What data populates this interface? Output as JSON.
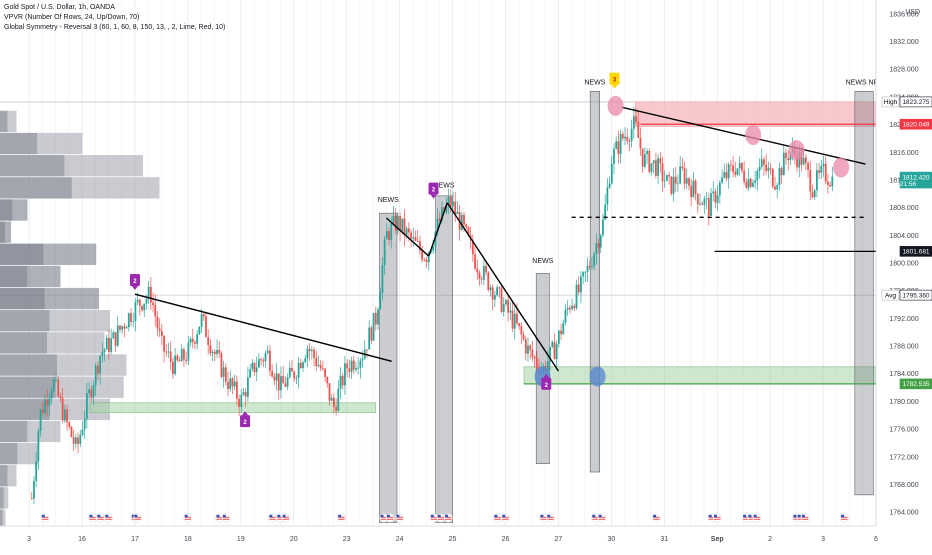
{
  "legend": {
    "title": "Gold Spot / U.S. Dollar, 1h, OANDA",
    "vpvr": "VPVR (Number Of Rows, 24, Up/Down, 70)",
    "symmetry": "Global Symmetry - Reversal 3 (60, 1, 60, 8, 150, 13, , 2, Lime, Red, 10)"
  },
  "axis": {
    "currency": "USD"
  },
  "colors": {
    "up": "#26a69a",
    "down": "#ef5350",
    "red_zone": "#f5b5bb",
    "red_line": "#f23645",
    "green_zone": "#a5d6a7",
    "green_line": "#43a047",
    "news_band": "#787b86",
    "badge": "#9c27b0",
    "badge_top": "#ffd600",
    "pink_marker": "#e88aa8",
    "blue_marker": "#5b8bd4",
    "price_tag": "#26a69a",
    "trend": "#000000"
  },
  "chart_data": {
    "type": "candlestick",
    "title": "Gold Spot / U.S. Dollar, 1h, OANDA",
    "y_unit": "USD",
    "ylim": [
      1762,
      1838
    ],
    "y_ticks": [
      1764,
      1768,
      1772,
      1776,
      1780,
      1784,
      1788,
      1792,
      1796,
      1800,
      1804,
      1808,
      1812,
      1816,
      1820,
      1824,
      1828,
      1832,
      1836
    ],
    "x_ticks": [
      {
        "label": "3",
        "x": 0
      },
      {
        "label": "16",
        "x": 1
      },
      {
        "label": "17",
        "x": 2
      },
      {
        "label": "18",
        "x": 3
      },
      {
        "label": "19",
        "x": 4
      },
      {
        "label": "20",
        "x": 5
      },
      {
        "label": "23",
        "x": 6
      },
      {
        "label": "24",
        "x": 7
      },
      {
        "label": "25",
        "x": 8
      },
      {
        "label": "26",
        "x": 9
      },
      {
        "label": "27",
        "x": 10
      },
      {
        "label": "30",
        "x": 11
      },
      {
        "label": "31",
        "x": 12
      },
      {
        "label": "Sep",
        "x": 13,
        "bold": true
      },
      {
        "label": "2",
        "x": 14
      },
      {
        "label": "3",
        "x": 15
      },
      {
        "label": "6",
        "x": 16
      }
    ],
    "xlim": [
      -0.55,
      16.0
    ],
    "price_path": [
      [
        0.05,
        1766
      ],
      [
        0.2,
        1778
      ],
      [
        0.45,
        1783
      ],
      [
        0.7,
        1777
      ],
      [
        0.9,
        1773
      ],
      [
        1.1,
        1780
      ],
      [
        1.35,
        1787
      ],
      [
        1.6,
        1789
      ],
      [
        1.85,
        1792
      ],
      [
        2.05,
        1794
      ],
      [
        2.3,
        1795.5
      ],
      [
        2.5,
        1788
      ],
      [
        2.75,
        1785
      ],
      [
        3.0,
        1787
      ],
      [
        3.25,
        1792
      ],
      [
        3.5,
        1787
      ],
      [
        3.75,
        1783
      ],
      [
        4.0,
        1780
      ],
      [
        4.25,
        1785
      ],
      [
        4.5,
        1787
      ],
      [
        4.75,
        1782
      ],
      [
        5.0,
        1784
      ],
      [
        5.25,
        1788
      ],
      [
        5.5,
        1785
      ],
      [
        5.75,
        1779
      ],
      [
        6.0,
        1785
      ],
      [
        6.3,
        1787
      ],
      [
        6.55,
        1792
      ],
      [
        6.75,
        1804
      ],
      [
        6.95,
        1806
      ],
      [
        7.25,
        1803
      ],
      [
        7.5,
        1801
      ],
      [
        7.75,
        1806
      ],
      [
        7.95,
        1809
      ],
      [
        8.2,
        1805
      ],
      [
        8.45,
        1800
      ],
      [
        8.7,
        1797
      ],
      [
        8.95,
        1794
      ],
      [
        9.2,
        1791
      ],
      [
        9.45,
        1787
      ],
      [
        9.7,
        1784.5
      ],
      [
        9.95,
        1788
      ],
      [
        10.2,
        1794
      ],
      [
        10.4,
        1796
      ],
      [
        10.6,
        1800
      ],
      [
        10.85,
        1806
      ],
      [
        11.0,
        1815
      ],
      [
        11.2,
        1818
      ],
      [
        11.45,
        1820
      ],
      [
        11.6,
        1815
      ],
      [
        11.85,
        1814
      ],
      [
        12.1,
        1811
      ],
      [
        12.35,
        1813
      ],
      [
        12.6,
        1810
      ],
      [
        12.85,
        1808
      ],
      [
        13.1,
        1812
      ],
      [
        13.35,
        1814
      ],
      [
        13.6,
        1812
      ],
      [
        13.85,
        1814
      ],
      [
        14.1,
        1812
      ],
      [
        14.35,
        1816
      ],
      [
        14.6,
        1815
      ],
      [
        14.8,
        1811
      ],
      [
        15.0,
        1813
      ],
      [
        15.2,
        1812
      ]
    ],
    "volume_profile": [
      {
        "price": 1838.0,
        "len": 0
      },
      {
        "price": 1834.8,
        "len": 0
      },
      {
        "price": 1831.6,
        "len": 0
      },
      {
        "price": 1828.4,
        "len": 0
      },
      {
        "price": 1825.2,
        "len": 0
      },
      {
        "price": 1822.0,
        "len": 6
      },
      {
        "price": 1818.8,
        "len": 30
      },
      {
        "price": 1815.6,
        "len": 52
      },
      {
        "price": 1812.4,
        "len": 58
      },
      {
        "price": 1809.2,
        "len": 10
      },
      {
        "price": 1806.0,
        "len": 4
      },
      {
        "price": 1802.8,
        "len": 35
      },
      {
        "price": 1799.6,
        "len": 22
      },
      {
        "price": 1796.4,
        "len": 36
      },
      {
        "price": 1793.2,
        "len": 40
      },
      {
        "price": 1790.0,
        "len": 38
      },
      {
        "price": 1786.8,
        "len": 46
      },
      {
        "price": 1783.6,
        "len": 45
      },
      {
        "price": 1780.4,
        "len": 40
      },
      {
        "price": 1777.2,
        "len": 22
      },
      {
        "price": 1774.0,
        "len": 14
      },
      {
        "price": 1770.8,
        "len": 6
      },
      {
        "price": 1767.6,
        "len": 3
      },
      {
        "price": 1764.4,
        "len": 2
      }
    ],
    "zones": [
      {
        "kind": "red",
        "x0": 11.45,
        "x1": 16.0,
        "y0": 1819.7,
        "y1": 1823.3
      },
      {
        "kind": "green-upper",
        "x0": 9.35,
        "x1": 16.0,
        "y0": 1782.5,
        "y1": 1785.0
      },
      {
        "kind": "green-lower",
        "x0": 1.15,
        "x1": 6.55,
        "y0": 1778.4,
        "y1": 1779.8
      }
    ],
    "h_lines": [
      {
        "kind": "red",
        "x0": 11.55,
        "x1": 16.0,
        "y": 1820.049
      },
      {
        "kind": "green",
        "x0": 9.35,
        "x1": 16.0,
        "y": 1782.535
      },
      {
        "kind": "black",
        "x0": 12.95,
        "x1": 16.0,
        "y": 1801.681
      },
      {
        "kind": "dashed",
        "x0": 10.25,
        "x1": 15.8,
        "y": 1806.6
      }
    ],
    "trend_lines": [
      [
        [
          2.0,
          1795.5
        ],
        [
          6.85,
          1785.8
        ]
      ],
      [
        [
          6.75,
          1806.5
        ],
        [
          7.55,
          1801.0
        ]
      ],
      [
        [
          7.55,
          1801.0
        ],
        [
          7.9,
          1808.7
        ]
      ],
      [
        [
          7.9,
          1808.7
        ],
        [
          10.0,
          1784.4
        ]
      ],
      [
        [
          11.2,
          1822.5
        ],
        [
          15.8,
          1814.3
        ]
      ]
    ],
    "news_bands": [
      {
        "x0": 6.62,
        "x1": 6.95,
        "y0": 1762.5,
        "y1": 1807.2,
        "label": "NEWS",
        "label_y": 1808.8
      },
      {
        "x0": 7.68,
        "x1": 8.0,
        "y0": 1762.5,
        "y1": 1809.7,
        "label": "NEWS",
        "label_y": 1810.9
      },
      {
        "x0": 9.58,
        "x1": 9.83,
        "y0": 1771.0,
        "y1": 1798.5,
        "label": "NEWS",
        "label_y": 1800.0
      },
      {
        "x0": 10.6,
        "x1": 10.78,
        "y0": 1769.8,
        "y1": 1824.8,
        "label": "NEWS",
        "label_y": 1825.8
      },
      {
        "x0": 15.6,
        "x1": 15.95,
        "y0": 1766.5,
        "y1": 1824.8,
        "label": "NEWS NFP",
        "label_y": 1825.8
      }
    ],
    "badges": [
      {
        "x": 2.0,
        "y": 1797.4,
        "label": "2",
        "point": "down",
        "color": "purple"
      },
      {
        "x": 4.08,
        "y": 1777.0,
        "label": "2",
        "point": "up",
        "color": "purple"
      },
      {
        "x": 7.64,
        "y": 1810.6,
        "label": "2",
        "point": "down",
        "color": "purple"
      },
      {
        "x": 9.77,
        "y": 1782.4,
        "label": "2",
        "point": "up",
        "color": "purple"
      },
      {
        "x": 11.06,
        "y": 1826.5,
        "label": "3",
        "point": "down",
        "color": "yellow"
      }
    ],
    "pink_markers": [
      {
        "x": 11.08,
        "y": 1822.7
      },
      {
        "x": 13.68,
        "y": 1818.5
      },
      {
        "x": 14.5,
        "y": 1816.3
      },
      {
        "x": 15.34,
        "y": 1813.8
      }
    ],
    "blue_markers": [
      {
        "x": 9.7,
        "y": 1783.6
      },
      {
        "x": 10.74,
        "y": 1783.6
      }
    ],
    "price_tags": [
      {
        "label": "High",
        "value": "1823.275",
        "y": 1823.275,
        "style": "high"
      },
      {
        "label": "",
        "value": "1820.049",
        "y": 1820.049,
        "style": "red"
      },
      {
        "label": "",
        "value": "1812.420",
        "sub": "21:56",
        "y": 1812.42,
        "style": "green"
      },
      {
        "label": "",
        "value": "1801.681",
        "y": 1801.681,
        "style": "black"
      },
      {
        "label": "Avg",
        "value": "1795.360",
        "y": 1795.36,
        "style": "avg"
      },
      {
        "label": "",
        "value": "1782.535",
        "y": 1782.535,
        "style": "green-solid"
      }
    ],
    "grid": false
  }
}
